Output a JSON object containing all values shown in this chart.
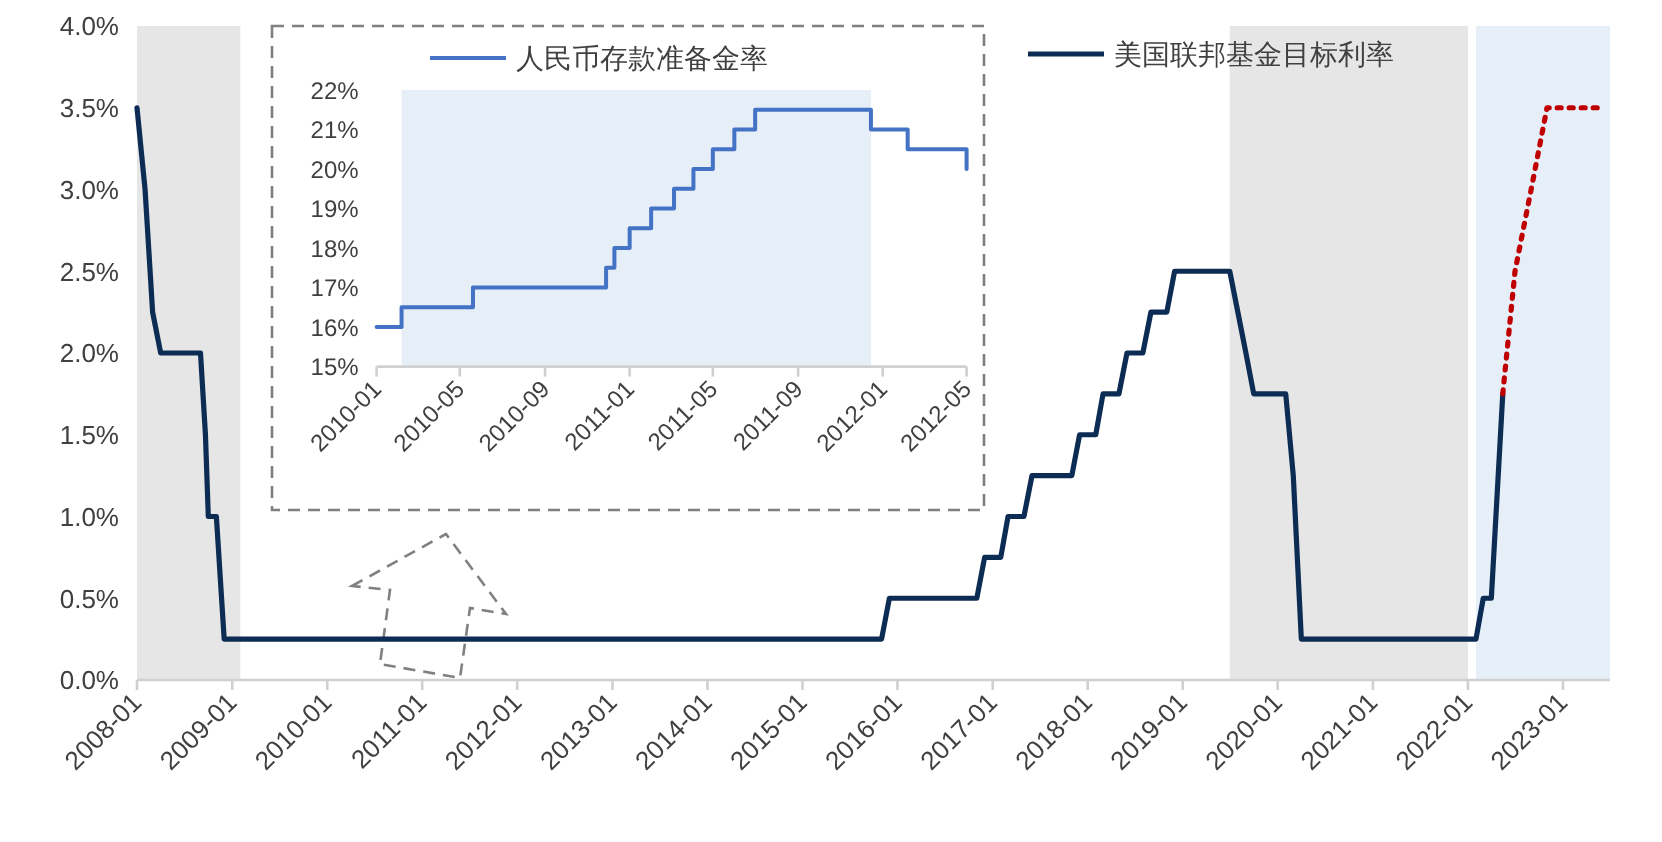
{
  "chart_data": [
    {
      "type": "line",
      "legend": "top right",
      "grid": false,
      "xlim": [
        "2008-01",
        "2023-07"
      ],
      "xticks": [
        {
          "value": "2008-01",
          "label": "2008-01"
        },
        {
          "value": "2009-01",
          "label": "2009-01"
        },
        {
          "value": "2010-01",
          "label": "2010-01"
        },
        {
          "value": "2011-01",
          "label": "2011-01"
        },
        {
          "value": "2012-01",
          "label": "2012-01"
        },
        {
          "value": "2013-01",
          "label": "2013-01"
        },
        {
          "value": "2014-01",
          "label": "2014-01"
        },
        {
          "value": "2015-01",
          "label": "2015-01"
        },
        {
          "value": "2016-01",
          "label": "2016-01"
        },
        {
          "value": "2017-01",
          "label": "2017-01"
        },
        {
          "value": "2018-01",
          "label": "2018-01"
        },
        {
          "value": "2019-01",
          "label": "2019-01"
        },
        {
          "value": "2020-01",
          "label": "2020-01"
        },
        {
          "value": "2021-01",
          "label": "2021-01"
        },
        {
          "value": "2022-01",
          "label": "2022-01"
        },
        {
          "value": "2023-01",
          "label": "2023-01"
        }
      ],
      "ylim": [
        0,
        4
      ],
      "yticks": [
        {
          "value": 0,
          "label": "0.0%"
        },
        {
          "value": 0.5,
          "label": "0.5%"
        },
        {
          "value": 1,
          "label": "1.0%"
        },
        {
          "value": 1.5,
          "label": "1.5%"
        },
        {
          "value": 2,
          "label": "2.0%"
        },
        {
          "value": 2.5,
          "label": "2.5%"
        },
        {
          "value": 3,
          "label": "3.0%"
        },
        {
          "value": 3.5,
          "label": "3.5%"
        },
        {
          "value": 4,
          "label": "4.0%"
        }
      ],
      "bands": [
        {
          "axis": "x",
          "from": "2008-01",
          "to": "2009-02",
          "color": "#e6e6e6"
        },
        {
          "axis": "x",
          "from": "2019-07",
          "to": "2022-01",
          "color": "#e6e6e6"
        },
        {
          "axis": "x",
          "from": "2022-02",
          "to": "2023-07",
          "color": "#e6eef8"
        }
      ],
      "series": [
        {
          "name": "美国联邦基金目标利率",
          "color": "#0d2c54",
          "line_style": "solid",
          "x": [
            "2008-01",
            "2008-02",
            "2008-03",
            "2008-04",
            "2008-09",
            "2008-09-20",
            "2008-10",
            "2008-11",
            "2008-12",
            "2015-11",
            "2015-12",
            "2016-11",
            "2016-12",
            "2017-02",
            "2017-03",
            "2017-05",
            "2017-06",
            "2017-11",
            "2017-12",
            "2018-02",
            "2018-03",
            "2018-05",
            "2018-06",
            "2018-08",
            "2018-09",
            "2018-11",
            "2018-12",
            "2019-07",
            "2019-08",
            "2019-09",
            "2019-10",
            "2020-02",
            "2020-03",
            "2020-04",
            "2022-02",
            "2022-03",
            "2022-04",
            "2022-05-15"
          ],
          "values": [
            3.5,
            3.0,
            2.25,
            2.0,
            2.0,
            1.5,
            1.0,
            1.0,
            0.25,
            0.25,
            0.5,
            0.5,
            0.75,
            0.75,
            1.0,
            1.0,
            1.25,
            1.25,
            1.5,
            1.5,
            1.75,
            1.75,
            2.0,
            2.0,
            2.25,
            2.25,
            2.5,
            2.5,
            2.25,
            2.0,
            1.75,
            1.75,
            1.25,
            0.25,
            0.25,
            0.5,
            0.5,
            1.75
          ]
        },
        {
          "color": "#c00000",
          "line_style": "dotted",
          "x": [
            "2022-05-15",
            "2022-07",
            "2022-09",
            "2022-11",
            "2023-06"
          ],
          "values": [
            1.75,
            2.5,
            3.0,
            3.5,
            3.5
          ]
        }
      ]
    },
    {
      "type": "step",
      "legend": "top",
      "grid": false,
      "xlim": [
        "2010-01",
        "2012-05"
      ],
      "xticks": [
        {
          "value": "2010-01",
          "label": "2010-01"
        },
        {
          "value": "2010-05",
          "label": "2010-05"
        },
        {
          "value": "2010-09",
          "label": "2010-09"
        },
        {
          "value": "2011-01",
          "label": "2011-01"
        },
        {
          "value": "2011-05",
          "label": "2011-05"
        },
        {
          "value": "2011-09",
          "label": "2011-09"
        },
        {
          "value": "2012-01",
          "label": "2012-01"
        },
        {
          "value": "2012-05",
          "label": "2012-05"
        }
      ],
      "ylim": [
        15,
        22
      ],
      "yticks": [
        {
          "value": 15,
          "label": "15%"
        },
        {
          "value": 16,
          "label": "16%"
        },
        {
          "value": 17,
          "label": "17%"
        },
        {
          "value": 18,
          "label": "18%"
        },
        {
          "value": 19,
          "label": "19%"
        },
        {
          "value": 20,
          "label": "20%"
        },
        {
          "value": 21,
          "label": "21%"
        },
        {
          "value": 22,
          "label": "22%"
        }
      ],
      "bands": [
        {
          "axis": "x",
          "from": "2010-02-06",
          "to": "2011-12-15",
          "color": "#e6eef8"
        }
      ],
      "series": [
        {
          "name": "人民币存款准备金率",
          "color": "#4472c4",
          "line_style": "solid",
          "x": [
            "2010-01",
            "2010-02-06",
            "2010-05-20",
            "2010-11-28",
            "2010-12-10",
            "2011-01",
            "2011-02",
            "2011-03-06",
            "2011-04-03",
            "2011-05",
            "2011-06",
            "2011-07",
            "2011-12-15",
            "2012-02-06",
            "2012-05"
          ],
          "values": [
            16,
            16.5,
            17,
            17.5,
            18,
            18.5,
            19,
            19.5,
            20,
            20.5,
            21,
            21.5,
            21,
            20.5,
            20
          ]
        }
      ]
    }
  ]
}
